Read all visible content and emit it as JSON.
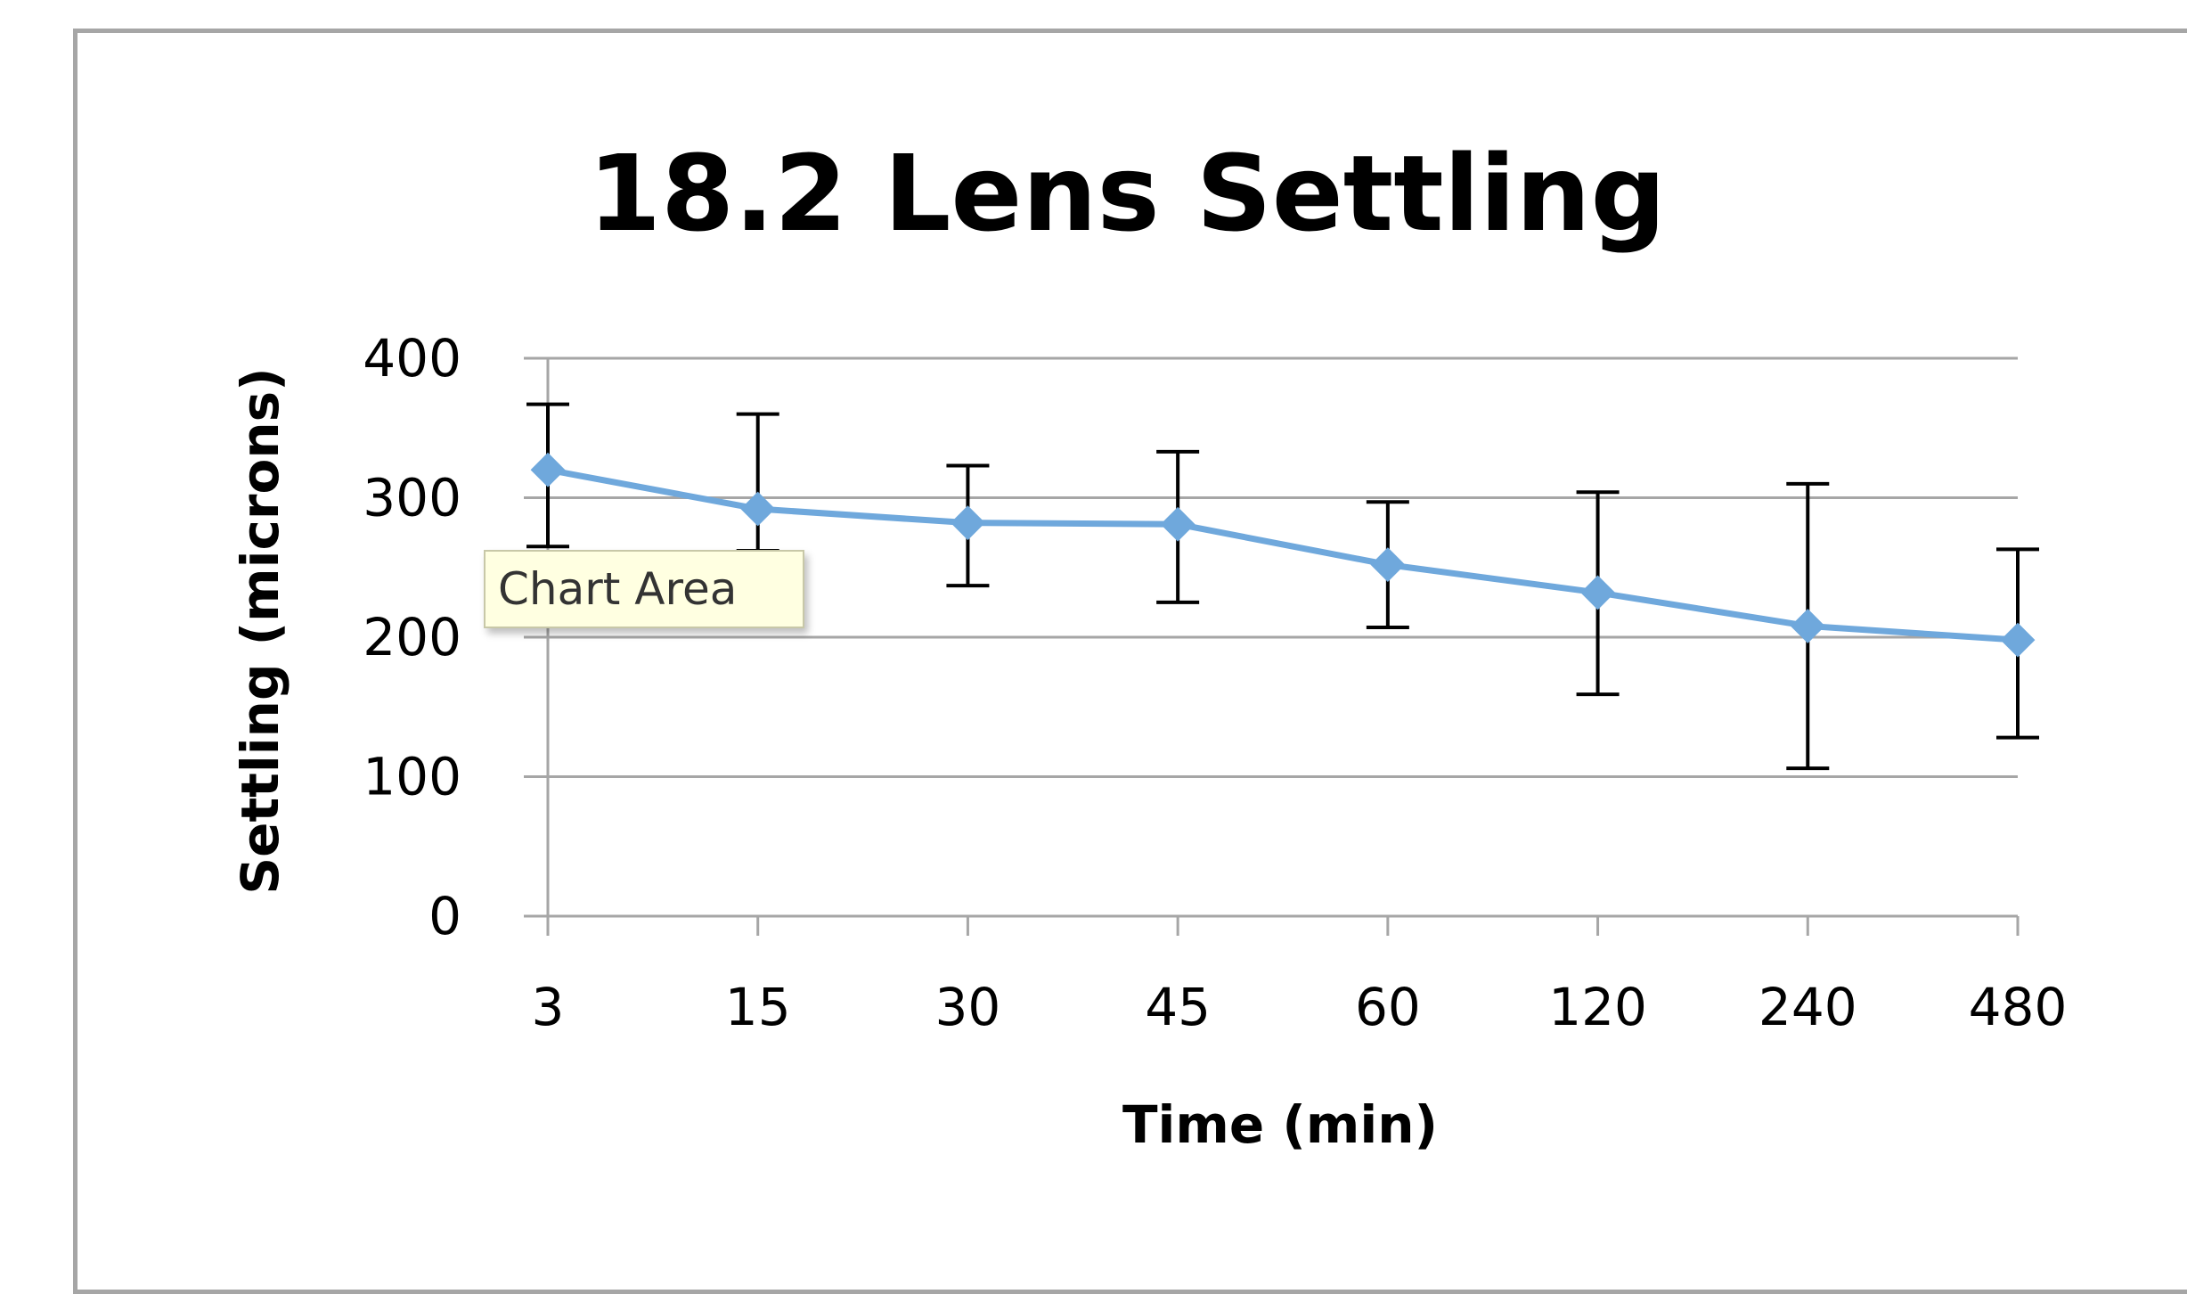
{
  "chart_data": {
    "type": "line",
    "title": "18.2 Lens Settling",
    "xlabel": "Time (min)",
    "ylabel": "Settling (microns)",
    "categories": [
      "3",
      "15",
      "30",
      "45",
      "60",
      "120",
      "240",
      "480"
    ],
    "series": [
      {
        "values": [
          320,
          292,
          282,
          281,
          252,
          232,
          208,
          198
        ],
        "error_low": [
          265,
          262,
          237,
          225,
          207,
          159,
          106,
          128
        ],
        "error_high": [
          367,
          360,
          323,
          333,
          297,
          304,
          310,
          263
        ],
        "color": "#6fa8dc",
        "marker": "diamond"
      }
    ],
    "yticks": [
      "0",
      "100",
      "200",
      "300",
      "400"
    ],
    "ylim": [
      0,
      400
    ],
    "grid": "horizontal",
    "legend": "none",
    "colors": {
      "gridline": "#a6a6a6",
      "errorbar": "#000000",
      "frame": "#a6a6a6"
    }
  },
  "tooltip": {
    "label": "Chart Area"
  }
}
